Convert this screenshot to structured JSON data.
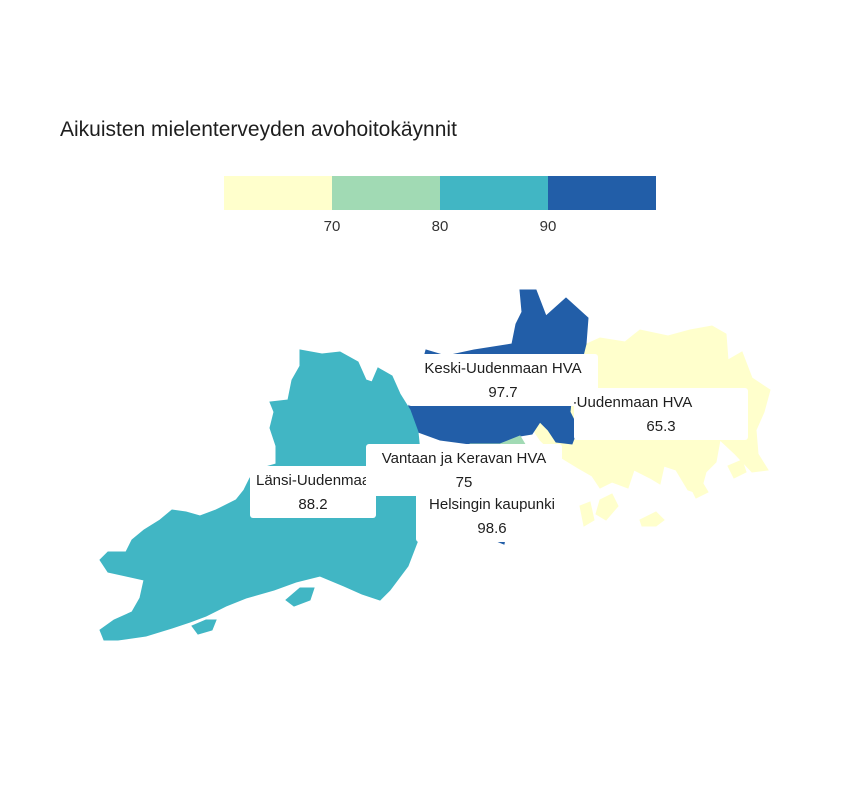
{
  "title": "Aikuisten mielenterveyden avohoitokäynnit",
  "legend": {
    "colors": [
      "#ffffcc",
      "#a1dab4",
      "#41b6c4",
      "#225ea8"
    ],
    "thresholds": [
      "70",
      "80",
      "90"
    ]
  },
  "regions": [
    {
      "name": "Keski-Uudenmaan HVA",
      "value": "97.7",
      "color": "#225ea8"
    },
    {
      "name": "Itä-Uudenmaan HVA",
      "value": "65.3",
      "color": "#ffffcc"
    },
    {
      "name": "Vantaan ja Keravan HVA",
      "value": "75",
      "color": "#a1dab4"
    },
    {
      "name": "Länsi-Uudenmaan HVA",
      "value": "88.2",
      "color": "#41b6c4"
    },
    {
      "name": "Helsingin kaupunki",
      "value": "98.6",
      "color": "#225ea8"
    }
  ]
}
